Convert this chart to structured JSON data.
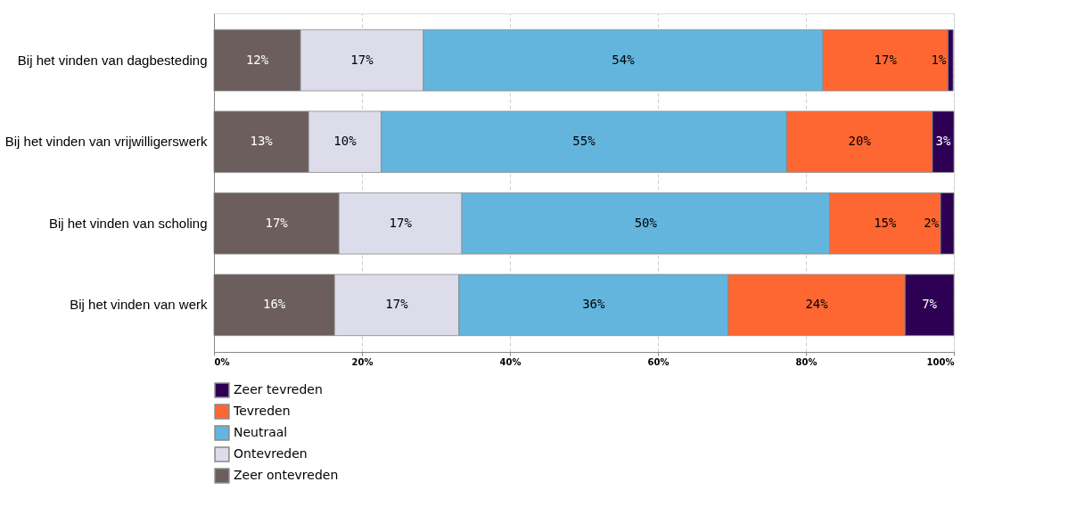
{
  "chart_data": {
    "type": "bar",
    "orientation": "horizontal",
    "stacked": true,
    "categories": [
      "Bij het vinden van dagbesteding",
      "Bij het vinden van vrijwilligerswerk",
      "Bij het vinden van scholing",
      "Bij het vinden van werk"
    ],
    "series": [
      {
        "name": "Zeer ontevreden",
        "color": "#6b5e5d",
        "values": [
          11.7,
          12.8,
          16.9,
          16.3
        ],
        "value_labels": [
          "12%",
          "13%",
          "17%",
          "16%"
        ]
      },
      {
        "name": "Ontevreden",
        "color": "#dcdceb",
        "values": [
          16.6,
          9.8,
          16.6,
          16.8
        ],
        "value_labels": [
          "17%",
          "10%",
          "17%",
          "17%"
        ]
      },
      {
        "name": "Neutraal",
        "color": "#63b5de",
        "values": [
          54.0,
          54.8,
          49.7,
          36.4
        ],
        "value_labels": [
          "54%",
          "55%",
          "50%",
          "36%"
        ]
      },
      {
        "name": "Tevreden",
        "color": "#fe6732",
        "values": [
          16.9,
          19.7,
          15.0,
          23.9
        ],
        "value_labels": [
          "17%",
          "20%",
          "15%",
          "24%"
        ]
      },
      {
        "name": "Zeer tevreden",
        "color": "#2e0054",
        "values": [
          0.7,
          2.9,
          1.8,
          6.6
        ],
        "value_labels": [
          "1%",
          "3%",
          "2%",
          "7%"
        ]
      }
    ],
    "xlim": [
      0,
      100
    ],
    "xticks": [
      {
        "value": 0,
        "label": "0%"
      },
      {
        "value": 20,
        "label": "20%"
      },
      {
        "value": 40,
        "label": "40%"
      },
      {
        "value": 60,
        "label": "60%"
      },
      {
        "value": 80,
        "label": "80%"
      },
      {
        "value": 100,
        "label": "100%"
      }
    ],
    "grid": "x",
    "legend": "bottom"
  }
}
